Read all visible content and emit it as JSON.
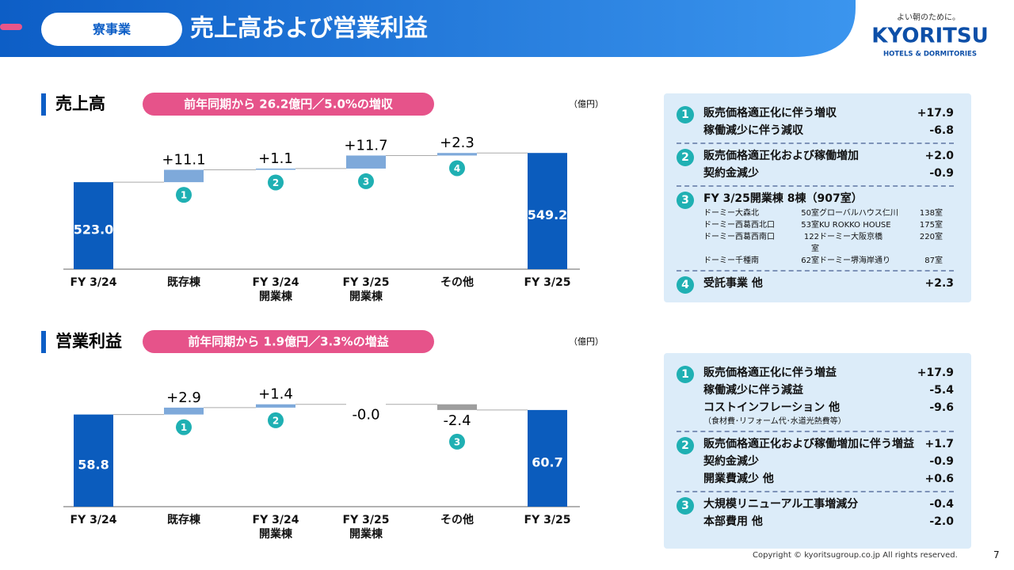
{
  "header": {
    "tag": "寮事業",
    "title": "売上高および営業利益",
    "logo_tagline": "よい朝のために。",
    "logo_name": "KYORITSU",
    "logo_sub": "HOTELS & DORMITORIES"
  },
  "sections": [
    {
      "title": "売上高",
      "badge": "前年同期から 26.2億円／5.0%の増収",
      "unit": "（億円）"
    },
    {
      "title": "営業利益",
      "badge": "前年同期から 1.9億円／3.3%の増益",
      "unit": "（億円）"
    }
  ],
  "chart_data": [
    {
      "type": "waterfall",
      "categories": [
        "FY 3/24",
        "既存棟",
        "FY 3/24\n開業棟",
        "FY 3/25\n開業棟",
        "その他",
        "FY 3/25"
      ],
      "measure": [
        "total",
        "relative",
        "relative",
        "relative",
        "relative",
        "total"
      ],
      "values": [
        523.0,
        11.1,
        1.1,
        11.7,
        2.3,
        549.2
      ],
      "value_labels": [
        "523.0",
        "+11.1",
        "+1.1",
        "+11.7",
        "+2.3",
        "549.2"
      ],
      "markers": [
        null,
        "1",
        "2",
        "3",
        "4",
        null
      ],
      "ylim": [
        445,
        560
      ],
      "total_color": "#0b5cbd",
      "increase_color": "#7ea9da",
      "decrease_color": "#9e9e9e"
    },
    {
      "type": "waterfall",
      "categories": [
        "FY 3/24",
        "既存棟",
        "FY 3/24\n開業棟",
        "FY 3/25\n開業棟",
        "その他",
        "FY 3/25"
      ],
      "measure": [
        "total",
        "relative",
        "relative",
        "relative",
        "relative",
        "total"
      ],
      "values": [
        58.8,
        2.9,
        1.4,
        0,
        -2.4,
        60.7
      ],
      "value_labels": [
        "58.8",
        "+2.9",
        "+1.4",
        "-0.0",
        "-2.4",
        "60.7"
      ],
      "markers": [
        null,
        "1",
        "2",
        null,
        "3",
        null
      ],
      "ylim": [
        20,
        65
      ],
      "total_color": "#0b5cbd",
      "increase_color": "#7ea9da",
      "decrease_color": "#9e9e9e"
    }
  ],
  "panels": [
    [
      {
        "num": "1",
        "rows": [
          [
            "販売価格適正化に伴う増収",
            "+17.9"
          ],
          [
            "稼働減少に伴う減収",
            "-6.8"
          ]
        ]
      },
      {
        "num": "2",
        "rows": [
          [
            "販売価格適正化および稼働増加",
            "+2.0"
          ],
          [
            "契約金減少",
            "-0.9"
          ]
        ]
      },
      {
        "num": "3",
        "title": "FY 3/25開業棟  8棟（907室）",
        "table": [
          [
            "ドーミー大森北",
            "50室",
            "グローバルハウス仁川",
            "138室"
          ],
          [
            "ドーミー西葛西北口",
            "53室",
            "KU ROKKO HOUSE",
            "175室"
          ],
          [
            "ドーミー西葛西南口",
            "122室",
            "ドーミー大阪京橋",
            "220室"
          ],
          [
            "ドーミー千種南",
            "62室",
            "ドーミー堺海岸通り",
            "87室"
          ]
        ]
      },
      {
        "num": "4",
        "rows": [
          [
            "受託事業  他",
            "+2.3"
          ]
        ]
      }
    ],
    [
      {
        "num": "1",
        "rows": [
          [
            "販売価格適正化に伴う増益",
            "+17.9"
          ],
          [
            "稼働減少に伴う減益",
            "-5.4"
          ],
          [
            "コストインフレーション  他",
            "-9.6"
          ]
        ],
        "note": "（食材費･リフォーム代･水道光熱費等）"
      },
      {
        "num": "2",
        "rows": [
          [
            "販売価格適正化および稼働増加に伴う増益",
            "+1.7"
          ],
          [
            "契約金減少",
            "-0.9"
          ],
          [
            "開業費減少  他",
            "+0.6"
          ]
        ]
      },
      {
        "num": "3",
        "rows": [
          [
            "大規模リニューアル工事増減分",
            "-0.4"
          ],
          [
            "本部費用  他",
            "-2.0"
          ]
        ]
      }
    ]
  ],
  "footer": {
    "copyright": "Copyright © kyoritsugroup.co.jp All rights reserved.",
    "page": "7"
  }
}
